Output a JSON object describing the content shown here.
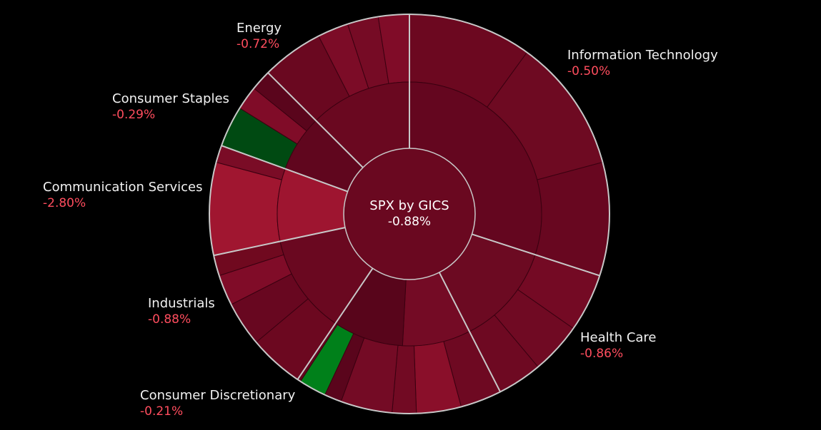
{
  "chart_data": {
    "type": "sunburst",
    "center": {
      "title": "SPX by GICS",
      "value": "-0.88%",
      "color": "#6a0820"
    },
    "colors": {
      "background": "#000000",
      "ring_outline": "#c8c8c8"
    },
    "sectors": [
      {
        "id": "it",
        "name": "Information Technology",
        "change": "-0.50%",
        "start": 0,
        "end": 108,
        "mid_color": "#64061f",
        "inner": [
          {
            "start": 0,
            "end": 108,
            "color": "#64061f"
          }
        ],
        "outer": [
          {
            "start": 0,
            "end": 36,
            "color": "#6c0820"
          },
          {
            "start": 36,
            "end": 75,
            "color": "#6e0a22"
          },
          {
            "start": 75,
            "end": 108,
            "color": "#680720"
          }
        ]
      },
      {
        "id": "hc",
        "name": "Health Care",
        "change": "-0.86%",
        "start": 108,
        "end": 153,
        "mid_color": "#6c0a22",
        "inner": [
          {
            "start": 108,
            "end": 153,
            "color": "#6c0a22"
          }
        ],
        "outer": [
          {
            "start": 108,
            "end": 125,
            "color": "#740a24"
          },
          {
            "start": 125,
            "end": 140,
            "color": "#700a23"
          },
          {
            "start": 140,
            "end": 153,
            "color": "#6e0922"
          }
        ]
      },
      {
        "id": "cd",
        "name": "Consumer Discretionary",
        "change": "-0.21%",
        "start": 153,
        "end": 214,
        "mid_color": "#5e061c",
        "inner": [
          {
            "start": 153,
            "end": 183,
            "color": "#740b25"
          },
          {
            "start": 183,
            "end": 214,
            "color": "#58051b"
          }
        ],
        "outer": [
          {
            "start": 153,
            "end": 165,
            "color": "#6e0922"
          },
          {
            "start": 165,
            "end": 178,
            "color": "#8a0f2a"
          },
          {
            "start": 178,
            "end": 185,
            "color": "#720a23"
          },
          {
            "start": 185,
            "end": 200,
            "color": "#740b25"
          },
          {
            "start": 200,
            "end": 205,
            "color": "#5a051c"
          },
          {
            "start": 205,
            "end": 213,
            "color": "#00801a"
          },
          {
            "start": 213,
            "end": 214,
            "color": "#64061f"
          }
        ]
      },
      {
        "id": "ind",
        "name": "Industrials",
        "change": "-0.88%",
        "start": 214,
        "end": 258,
        "mid_color": "#6a0820",
        "inner": [
          {
            "start": 214,
            "end": 258,
            "color": "#6a0820"
          }
        ],
        "outer": [
          {
            "start": 214,
            "end": 230,
            "color": "#6c0820"
          },
          {
            "start": 230,
            "end": 243,
            "color": "#680720"
          },
          {
            "start": 243,
            "end": 252,
            "color": "#800c28"
          },
          {
            "start": 252,
            "end": 258,
            "color": "#70091f"
          }
        ]
      },
      {
        "id": "cs",
        "name": "Communication Services",
        "change": "-2.80%",
        "start": 258,
        "end": 290,
        "mid_color": "#9e1530",
        "inner": [
          {
            "start": 258,
            "end": 290,
            "color": "#9e1530"
          }
        ],
        "outer": [
          {
            "start": 258,
            "end": 285,
            "color": "#a01630"
          },
          {
            "start": 285,
            "end": 290,
            "color": "#7a0c26"
          }
        ]
      },
      {
        "id": "st",
        "name": "Consumer Staples",
        "change": "-0.29%",
        "start": 290,
        "end": 315,
        "mid_color": "#60061e",
        "inner": [
          {
            "start": 290,
            "end": 315,
            "color": "#60061e"
          }
        ],
        "outer": [
          {
            "start": 290,
            "end": 302,
            "color": "#004a12"
          },
          {
            "start": 302,
            "end": 309,
            "color": "#800c28"
          },
          {
            "start": 309,
            "end": 315,
            "color": "#5a051c"
          }
        ]
      },
      {
        "id": "en",
        "name": "Energy",
        "change": "-0.72%",
        "start": 315,
        "end": 360,
        "mid_color": "#6a0820",
        "inner": [
          {
            "start": 315,
            "end": 360,
            "color": "#6a0820"
          }
        ],
        "outer": [
          {
            "start": 315,
            "end": 333,
            "color": "#6a0820"
          },
          {
            "start": 333,
            "end": 342,
            "color": "#7c0c27"
          },
          {
            "start": 342,
            "end": 351,
            "color": "#760b25"
          },
          {
            "start": 351,
            "end": 360,
            "color": "#800c28"
          }
        ]
      }
    ]
  }
}
